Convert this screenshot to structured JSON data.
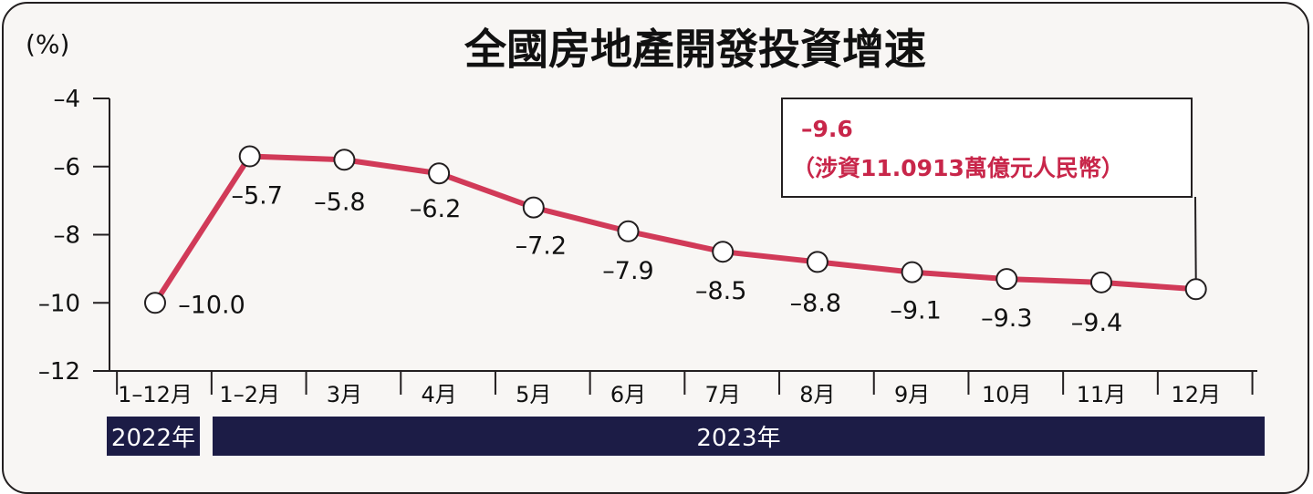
{
  "chart_data": {
    "type": "line",
    "title": "全國房地產開發投資增速",
    "unit_label": "(%)",
    "categories": [
      "1–12月",
      "1–2月",
      "3月",
      "4月",
      "5月",
      "6月",
      "7月",
      "8月",
      "9月",
      "10月",
      "11月",
      "12月"
    ],
    "values": [
      -10.0,
      -5.7,
      -5.8,
      -6.2,
      -7.2,
      -7.9,
      -8.5,
      -8.8,
      -9.1,
      -9.3,
      -9.4,
      -9.6
    ],
    "data_labels": [
      "–10.0",
      "–5.7",
      "–5.8",
      "–6.2",
      "–7.2",
      "–7.9",
      "–8.5",
      "–8.8",
      "–9.1",
      "–9.3",
      "–9.4",
      ""
    ],
    "ylim": [
      -12,
      -4
    ],
    "yticks": [
      -4,
      -6,
      -8,
      -10,
      -12
    ],
    "ytick_labels": [
      "–4",
      "–6",
      "–8",
      "–10",
      "–12"
    ],
    "line_color": "#d13a58",
    "year_bands": [
      {
        "label": "2022年",
        "first_index": 0,
        "last_index": 0
      },
      {
        "label": "2023年",
        "first_index": 1,
        "last_index": 11
      }
    ],
    "year_band_color": "#1c1c46",
    "callout": {
      "index": 11,
      "value_text": "–9.6",
      "note_text": "（涉資11.0913萬億元人民幣）",
      "color": "#c8264a"
    },
    "grid": false
  }
}
